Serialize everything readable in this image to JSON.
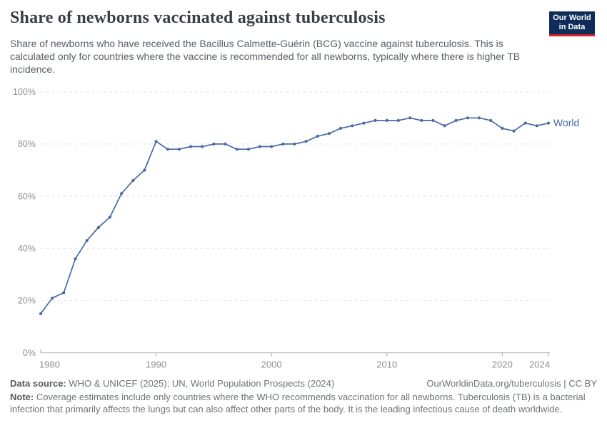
{
  "header": {
    "title": "Share of newborns vaccinated against tuberculosis",
    "subtitle": "Share of newborns who have received the Bacillus Calmette-Guérin (BCG) vaccine against tuberculosis. This is calculated only for countries where the vaccine is recommended for all newborns, typically where there is higher TB incidence."
  },
  "logo": {
    "line1": "Our World",
    "line2": "in Data",
    "bg_color": "#102d59",
    "accent_color": "#d5232e"
  },
  "footer": {
    "data_source_label": "Data source:",
    "data_source_text": "WHO & UNICEF (2025); UN, World Population Prospects (2024)",
    "link_text": "OurWorldinData.org/tuberculosis | CC BY",
    "note_label": "Note:",
    "note_text": "Coverage estimates include only countries where the WHO recommends vaccination for all newborns. Tuberculosis (TB) is a bacterial infection that primarily affects the lungs but can also affect other parts of the body. It is the leading infectious cause of death worldwide."
  },
  "chart_data": {
    "type": "line",
    "title": "Share of newborns vaccinated against tuberculosis",
    "xlabel": "",
    "ylabel": "",
    "xlim": [
      1980,
      2024
    ],
    "ylim": [
      0,
      100
    ],
    "xticks": [
      1980,
      1990,
      2000,
      2010,
      2020,
      2024
    ],
    "yticks": [
      0,
      20,
      40,
      60,
      80,
      100
    ],
    "ytick_labels": [
      "0%",
      "20%",
      "40%",
      "60%",
      "80%",
      "100%"
    ],
    "grid": "horizontal-dashed",
    "legend": "end-of-line-label",
    "end_label": "World",
    "line_color": "#4a69a5",
    "axis_color": "#a8a8a8",
    "grid_color": "#dedede",
    "tick_label_color": "#8f8f8f",
    "x": [
      1980,
      1981,
      1982,
      1983,
      1984,
      1985,
      1986,
      1987,
      1988,
      1989,
      1990,
      1991,
      1992,
      1993,
      1994,
      1995,
      1996,
      1997,
      1998,
      1999,
      2000,
      2001,
      2002,
      2003,
      2004,
      2005,
      2006,
      2007,
      2008,
      2009,
      2010,
      2011,
      2012,
      2013,
      2014,
      2015,
      2016,
      2017,
      2018,
      2019,
      2020,
      2021,
      2022,
      2023,
      2024
    ],
    "series": [
      {
        "name": "World",
        "values": [
          15,
          21,
          23,
          36,
          43,
          48,
          52,
          61,
          66,
          70,
          81,
          78,
          78,
          79,
          79,
          80,
          80,
          78,
          78,
          79,
          79,
          80,
          80,
          81,
          83,
          84,
          86,
          87,
          88,
          89,
          89,
          89,
          90,
          89,
          89,
          87,
          89,
          90,
          90,
          89,
          86,
          85,
          88,
          87,
          88
        ]
      }
    ]
  }
}
